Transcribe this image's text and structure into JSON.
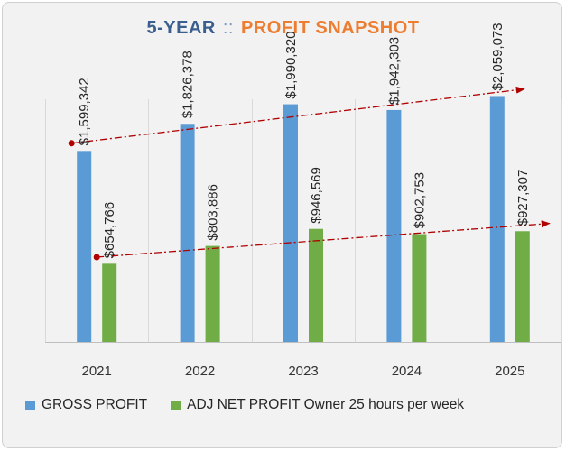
{
  "title": {
    "part1": "5-YEAR",
    "separator": "::",
    "part2": "PROFIT SNAPSHOT"
  },
  "colors": {
    "gross": "#5b9bd5",
    "net": "#70ad47",
    "trend": "#b00000",
    "title_part1": "#3a5f8f",
    "title_part2": "#ed7d31"
  },
  "chart_data": {
    "type": "bar",
    "title": "5-YEAR :: PROFIT SNAPSHOT",
    "categories": [
      "2021",
      "2022",
      "2023",
      "2024",
      "2025"
    ],
    "series": [
      {
        "name": "GROSS PROFIT",
        "values": [
          1599342,
          1826378,
          1990320,
          1942303,
          2059073
        ],
        "labels": [
          "$1,599,342",
          "$1,826,378",
          "$1,990,320",
          "$1,942,303",
          "$2,059,073"
        ]
      },
      {
        "name": "ADJ NET PROFIT Owner 25 hours per week",
        "values": [
          654766,
          803886,
          946569,
          902753,
          927307
        ],
        "labels": [
          "$654,766",
          "$803,886",
          "$946,569",
          "$902,753",
          "$927,307"
        ]
      }
    ],
    "trendlines": [
      "GROSS PROFIT",
      "ADJ NET PROFIT Owner 25 hours per week"
    ],
    "ylim": [
      0,
      2600000
    ],
    "grid": "vertical category separators",
    "legend": "bottom-left",
    "xlabel": "",
    "ylabel": ""
  }
}
